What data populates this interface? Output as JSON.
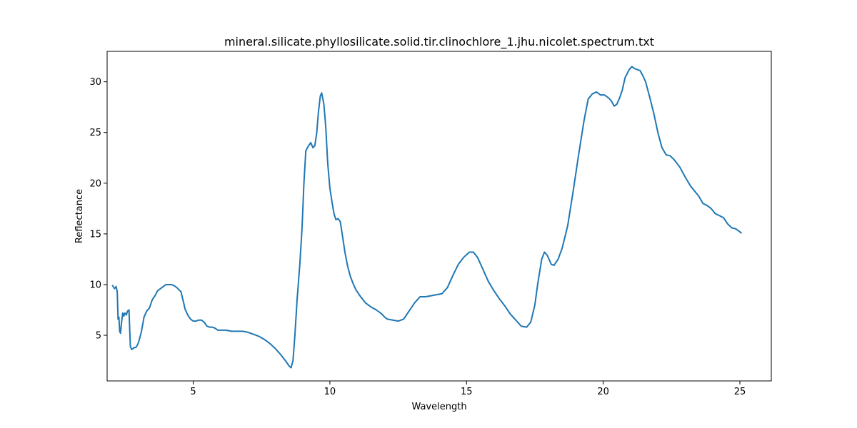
{
  "chart_data": {
    "type": "line",
    "title": "mineral.silicate.phyllosilicate.solid.tir.clinochlore_1.jhu.nicolet.spectrum.txt",
    "xlabel": "Wavelength",
    "ylabel": "Reflectance",
    "xlim": [
      1.85,
      26.15
    ],
    "ylim": [
      0.5,
      33.0
    ],
    "xticks": [
      5,
      10,
      15,
      20,
      25
    ],
    "yticks": [
      5,
      10,
      15,
      20,
      25,
      30
    ],
    "grid": false,
    "legend": "none",
    "series": [
      {
        "color": "#1f77b4",
        "points": [
          [
            2.05,
            9.9
          ],
          [
            2.12,
            9.6
          ],
          [
            2.18,
            9.8
          ],
          [
            2.22,
            9.3
          ],
          [
            2.25,
            6.6
          ],
          [
            2.28,
            6.8
          ],
          [
            2.31,
            5.4
          ],
          [
            2.34,
            5.2
          ],
          [
            2.38,
            6.3
          ],
          [
            2.42,
            7.2
          ],
          [
            2.46,
            6.9
          ],
          [
            2.5,
            7.2
          ],
          [
            2.55,
            7.0
          ],
          [
            2.6,
            7.4
          ],
          [
            2.65,
            7.5
          ],
          [
            2.7,
            3.9
          ],
          [
            2.75,
            3.6
          ],
          [
            2.8,
            3.7
          ],
          [
            2.85,
            3.8
          ],
          [
            2.9,
            3.8
          ],
          [
            2.95,
            4.0
          ],
          [
            3.0,
            4.3
          ],
          [
            3.1,
            5.3
          ],
          [
            3.2,
            6.8
          ],
          [
            3.3,
            7.4
          ],
          [
            3.4,
            7.7
          ],
          [
            3.5,
            8.5
          ],
          [
            3.6,
            8.9
          ],
          [
            3.7,
            9.4
          ],
          [
            3.8,
            9.6
          ],
          [
            3.9,
            9.8
          ],
          [
            4.0,
            10.0
          ],
          [
            4.1,
            10.0
          ],
          [
            4.2,
            10.0
          ],
          [
            4.3,
            9.9
          ],
          [
            4.4,
            9.7
          ],
          [
            4.55,
            9.3
          ],
          [
            4.65,
            8.2
          ],
          [
            4.7,
            7.6
          ],
          [
            4.8,
            7.0
          ],
          [
            4.9,
            6.6
          ],
          [
            5.0,
            6.4
          ],
          [
            5.1,
            6.4
          ],
          [
            5.2,
            6.5
          ],
          [
            5.3,
            6.5
          ],
          [
            5.4,
            6.3
          ],
          [
            5.5,
            5.9
          ],
          [
            5.6,
            5.8
          ],
          [
            5.7,
            5.8
          ],
          [
            5.8,
            5.7
          ],
          [
            5.9,
            5.5
          ],
          [
            6.0,
            5.5
          ],
          [
            6.2,
            5.5
          ],
          [
            6.4,
            5.4
          ],
          [
            6.6,
            5.4
          ],
          [
            6.8,
            5.4
          ],
          [
            7.0,
            5.3
          ],
          [
            7.2,
            5.1
          ],
          [
            7.4,
            4.9
          ],
          [
            7.6,
            4.6
          ],
          [
            7.8,
            4.2
          ],
          [
            8.0,
            3.7
          ],
          [
            8.2,
            3.1
          ],
          [
            8.4,
            2.4
          ],
          [
            8.5,
            2.0
          ],
          [
            8.58,
            1.8
          ],
          [
            8.65,
            2.5
          ],
          [
            8.72,
            5.0
          ],
          [
            8.8,
            8.5
          ],
          [
            8.9,
            12.0
          ],
          [
            8.98,
            15.5
          ],
          [
            9.05,
            20.0
          ],
          [
            9.12,
            23.2
          ],
          [
            9.2,
            23.6
          ],
          [
            9.3,
            24.0
          ],
          [
            9.38,
            23.5
          ],
          [
            9.45,
            23.7
          ],
          [
            9.52,
            25.0
          ],
          [
            9.58,
            27.0
          ],
          [
            9.65,
            28.6
          ],
          [
            9.7,
            28.9
          ],
          [
            9.78,
            27.8
          ],
          [
            9.85,
            25.5
          ],
          [
            9.92,
            22.0
          ],
          [
            10.0,
            19.5
          ],
          [
            10.08,
            18.1
          ],
          [
            10.15,
            17.0
          ],
          [
            10.22,
            16.4
          ],
          [
            10.3,
            16.5
          ],
          [
            10.38,
            16.2
          ],
          [
            10.45,
            15.0
          ],
          [
            10.55,
            13.2
          ],
          [
            10.65,
            11.8
          ],
          [
            10.75,
            10.8
          ],
          [
            10.85,
            10.1
          ],
          [
            10.95,
            9.5
          ],
          [
            11.1,
            8.9
          ],
          [
            11.3,
            8.2
          ],
          [
            11.5,
            7.8
          ],
          [
            11.7,
            7.5
          ],
          [
            11.9,
            7.1
          ],
          [
            12.0,
            6.8
          ],
          [
            12.1,
            6.6
          ],
          [
            12.3,
            6.5
          ],
          [
            12.5,
            6.4
          ],
          [
            12.7,
            6.6
          ],
          [
            12.9,
            7.4
          ],
          [
            13.1,
            8.2
          ],
          [
            13.3,
            8.8
          ],
          [
            13.5,
            8.8
          ],
          [
            13.7,
            8.9
          ],
          [
            13.9,
            9.0
          ],
          [
            14.1,
            9.1
          ],
          [
            14.3,
            9.7
          ],
          [
            14.5,
            10.9
          ],
          [
            14.7,
            12.0
          ],
          [
            14.9,
            12.7
          ],
          [
            15.1,
            13.2
          ],
          [
            15.25,
            13.2
          ],
          [
            15.4,
            12.7
          ],
          [
            15.6,
            11.5
          ],
          [
            15.8,
            10.3
          ],
          [
            16.0,
            9.4
          ],
          [
            16.2,
            8.6
          ],
          [
            16.4,
            7.9
          ],
          [
            16.6,
            7.1
          ],
          [
            16.8,
            6.5
          ],
          [
            17.0,
            5.9
          ],
          [
            17.2,
            5.8
          ],
          [
            17.35,
            6.3
          ],
          [
            17.5,
            8.0
          ],
          [
            17.6,
            10.0
          ],
          [
            17.75,
            12.5
          ],
          [
            17.85,
            13.2
          ],
          [
            17.95,
            12.9
          ],
          [
            18.1,
            12.0
          ],
          [
            18.2,
            11.9
          ],
          [
            18.35,
            12.5
          ],
          [
            18.5,
            13.6
          ],
          [
            18.7,
            15.8
          ],
          [
            18.9,
            19.2
          ],
          [
            19.1,
            22.8
          ],
          [
            19.3,
            26.2
          ],
          [
            19.45,
            28.3
          ],
          [
            19.6,
            28.8
          ],
          [
            19.75,
            29.0
          ],
          [
            19.9,
            28.7
          ],
          [
            20.05,
            28.7
          ],
          [
            20.2,
            28.4
          ],
          [
            20.3,
            28.1
          ],
          [
            20.4,
            27.6
          ],
          [
            20.5,
            27.8
          ],
          [
            20.6,
            28.4
          ],
          [
            20.7,
            29.2
          ],
          [
            20.8,
            30.4
          ],
          [
            20.95,
            31.2
          ],
          [
            21.05,
            31.5
          ],
          [
            21.15,
            31.3
          ],
          [
            21.25,
            31.2
          ],
          [
            21.35,
            31.1
          ],
          [
            21.45,
            30.6
          ],
          [
            21.55,
            30.0
          ],
          [
            21.7,
            28.5
          ],
          [
            21.85,
            26.9
          ],
          [
            22.0,
            25.0
          ],
          [
            22.15,
            23.5
          ],
          [
            22.3,
            22.8
          ],
          [
            22.45,
            22.7
          ],
          [
            22.6,
            22.3
          ],
          [
            22.8,
            21.6
          ],
          [
            23.0,
            20.6
          ],
          [
            23.2,
            19.7
          ],
          [
            23.35,
            19.2
          ],
          [
            23.5,
            18.7
          ],
          [
            23.65,
            18.0
          ],
          [
            23.8,
            17.8
          ],
          [
            23.95,
            17.5
          ],
          [
            24.1,
            17.0
          ],
          [
            24.25,
            16.8
          ],
          [
            24.4,
            16.6
          ],
          [
            24.55,
            16.0
          ],
          [
            24.7,
            15.6
          ],
          [
            24.85,
            15.5
          ],
          [
            24.95,
            15.3
          ],
          [
            25.05,
            15.1
          ]
        ]
      }
    ]
  }
}
